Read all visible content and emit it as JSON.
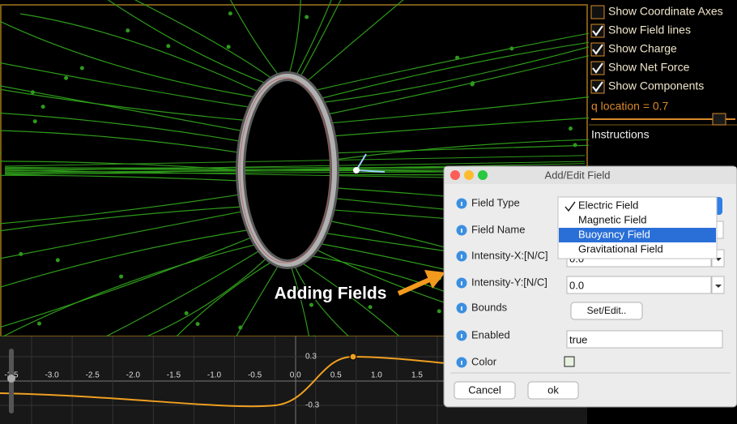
{
  "view": {
    "annotation": "Adding Fields"
  },
  "panel": {
    "options": [
      {
        "label": "Show Coordinate Axes",
        "checked": false
      },
      {
        "label": "Show Field lines",
        "checked": true
      },
      {
        "label": "Show Charge",
        "checked": true
      },
      {
        "label": "Show Net Force",
        "checked": true
      },
      {
        "label": "Show Components",
        "checked": true
      }
    ],
    "slider_label": "q location = 0.7",
    "instructions_title": "Instructions"
  },
  "graph": {
    "xticks": [
      "-3.5",
      "-3.0",
      "-2.5",
      "-2.0",
      "-1.5",
      "-1.0",
      "-0.5",
      "0.0",
      "0.5",
      "1.0",
      "1.5"
    ],
    "yticks": [
      "0.3",
      "-0.3"
    ]
  },
  "dialog": {
    "title": "Add/Edit Field",
    "fields": [
      {
        "label": "Field Type"
      },
      {
        "label": "Field Name"
      },
      {
        "label": "Intensity-X:[N/C]",
        "value": "0.0"
      },
      {
        "label": "Intensity-Y:[N/C]",
        "value": "0.0"
      },
      {
        "label": "Bounds",
        "button": "Set/Edit.."
      },
      {
        "label": "Enabled",
        "value": "true"
      },
      {
        "label": "Color"
      }
    ],
    "field_type_options": [
      "Electric Field",
      "Magnetic Field",
      "Buoyancy Field",
      "Gravitational Field"
    ],
    "selected_option": 0,
    "highlighted_option": 2,
    "buttons": [
      "Cancel",
      "ok"
    ]
  }
}
